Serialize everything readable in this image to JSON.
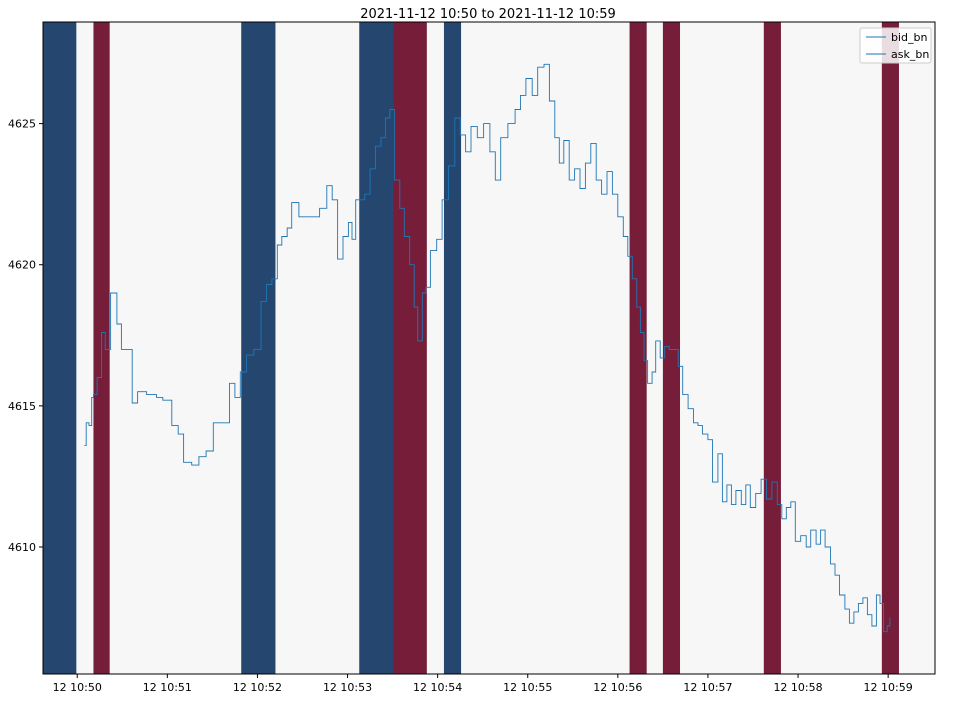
{
  "chart_data": {
    "type": "line",
    "title": "2021-11-12 10:50 to 2021-11-12 10:59",
    "xlabel": "",
    "ylabel": "",
    "x_ticks": [
      {
        "t": 50,
        "label": "12 10:50"
      },
      {
        "t": 51,
        "label": "12 10:51"
      },
      {
        "t": 52,
        "label": "12 10:52"
      },
      {
        "t": 53,
        "label": "12 10:53"
      },
      {
        "t": 54,
        "label": "12 10:54"
      },
      {
        "t": 55,
        "label": "12 10:55"
      },
      {
        "t": 56,
        "label": "12 10:56"
      },
      {
        "t": 57,
        "label": "12 10:57"
      },
      {
        "t": 58,
        "label": "12 10:58"
      },
      {
        "t": 59,
        "label": "12 10:59"
      }
    ],
    "y_ticks": [
      4610,
      4615,
      4620,
      4625
    ],
    "xlim": [
      49.62,
      59.52
    ],
    "ylim": [
      4605.5,
      4628.6
    ],
    "grid": false,
    "legend_position": "top-right",
    "background_color": "#f7f7f7",
    "line_color": "#1f77b4",
    "band_colors": {
      "buy": "#24466f",
      "sell": "#751d39"
    },
    "bands": [
      {
        "start": 49.62,
        "end": 49.99,
        "kind": "buy"
      },
      {
        "start": 50.18,
        "end": 50.36,
        "kind": "sell"
      },
      {
        "start": 51.82,
        "end": 52.2,
        "kind": "buy"
      },
      {
        "start": 53.13,
        "end": 53.51,
        "kind": "buy"
      },
      {
        "start": 53.51,
        "end": 53.88,
        "kind": "sell"
      },
      {
        "start": 54.07,
        "end": 54.26,
        "kind": "buy"
      },
      {
        "start": 56.13,
        "end": 56.32,
        "kind": "sell"
      },
      {
        "start": 56.5,
        "end": 56.69,
        "kind": "sell"
      },
      {
        "start": 57.62,
        "end": 57.81,
        "kind": "sell"
      },
      {
        "start": 58.93,
        "end": 59.12,
        "kind": "sell"
      }
    ],
    "series": [
      {
        "name": "bid_bn",
        "points": [
          [
            50.08,
            4613.6
          ],
          [
            50.1,
            4614.4
          ],
          [
            50.13,
            4614.3
          ],
          [
            50.16,
            4615.3
          ],
          [
            50.18,
            4615.4
          ],
          [
            50.22,
            4616.0
          ],
          [
            50.27,
            4617.6
          ],
          [
            50.31,
            4617.0
          ],
          [
            50.37,
            4619.0
          ],
          [
            50.44,
            4617.9
          ],
          [
            50.49,
            4617.0
          ],
          [
            50.56,
            4617.0
          ],
          [
            50.61,
            4615.1
          ],
          [
            50.67,
            4615.5
          ],
          [
            50.77,
            4615.4
          ],
          [
            50.88,
            4615.3
          ],
          [
            50.95,
            4615.2
          ],
          [
            51.05,
            4614.3
          ],
          [
            51.12,
            4614.0
          ],
          [
            51.18,
            4613.0
          ],
          [
            51.27,
            4612.9
          ],
          [
            51.35,
            4613.2
          ],
          [
            51.43,
            4613.4
          ],
          [
            51.51,
            4614.4
          ],
          [
            51.57,
            4614.4
          ],
          [
            51.63,
            4614.4
          ],
          [
            51.69,
            4615.8
          ],
          [
            51.75,
            4615.3
          ],
          [
            51.81,
            4616.2
          ],
          [
            51.88,
            4616.8
          ],
          [
            51.96,
            4617.0
          ],
          [
            52.04,
            4618.7
          ],
          [
            52.1,
            4619.3
          ],
          [
            52.16,
            4619.5
          ],
          [
            52.22,
            4620.7
          ],
          [
            52.27,
            4621.0
          ],
          [
            52.33,
            4621.3
          ],
          [
            52.38,
            4622.2
          ],
          [
            52.46,
            4621.7
          ],
          [
            52.55,
            4621.7
          ],
          [
            52.62,
            4621.7
          ],
          [
            52.69,
            4622.0
          ],
          [
            52.77,
            4622.8
          ],
          [
            52.83,
            4622.3
          ],
          [
            52.89,
            4620.2
          ],
          [
            52.95,
            4621.0
          ],
          [
            53.01,
            4621.5
          ],
          [
            53.05,
            4620.9
          ],
          [
            53.09,
            4622.3
          ],
          [
            53.14,
            4622.3
          ],
          [
            53.19,
            4622.5
          ],
          [
            53.25,
            4623.4
          ],
          [
            53.31,
            4624.2
          ],
          [
            53.37,
            4624.5
          ],
          [
            53.42,
            4625.2
          ],
          [
            53.47,
            4625.5
          ],
          [
            53.52,
            4623.0
          ],
          [
            53.58,
            4622.0
          ],
          [
            53.63,
            4621.0
          ],
          [
            53.69,
            4620.0
          ],
          [
            53.74,
            4618.5
          ],
          [
            53.78,
            4617.3
          ],
          [
            53.83,
            4619.0
          ],
          [
            53.87,
            4619.2
          ],
          [
            53.92,
            4620.5
          ],
          [
            53.99,
            4620.9
          ],
          [
            54.05,
            4622.3
          ],
          [
            54.12,
            4623.5
          ],
          [
            54.19,
            4625.2
          ],
          [
            54.25,
            4624.6
          ],
          [
            54.31,
            4624.0
          ],
          [
            54.37,
            4624.9
          ],
          [
            54.44,
            4624.5
          ],
          [
            54.51,
            4625.0
          ],
          [
            54.58,
            4624.0
          ],
          [
            54.64,
            4623.0
          ],
          [
            54.7,
            4624.5
          ],
          [
            54.78,
            4625.0
          ],
          [
            54.86,
            4625.5
          ],
          [
            54.92,
            4626.0
          ],
          [
            54.98,
            4626.6
          ],
          [
            55.05,
            4626.0
          ],
          [
            55.11,
            4627.0
          ],
          [
            55.18,
            4627.1
          ],
          [
            55.24,
            4625.8
          ],
          [
            55.3,
            4624.5
          ],
          [
            55.35,
            4623.6
          ],
          [
            55.4,
            4624.4
          ],
          [
            55.46,
            4623.0
          ],
          [
            55.52,
            4623.4
          ],
          [
            55.58,
            4622.7
          ],
          [
            55.64,
            4623.6
          ],
          [
            55.7,
            4624.3
          ],
          [
            55.76,
            4623.0
          ],
          [
            55.82,
            4622.5
          ],
          [
            55.88,
            4623.3
          ],
          [
            55.94,
            4622.5
          ],
          [
            56.0,
            4621.7
          ],
          [
            56.06,
            4621.0
          ],
          [
            56.11,
            4620.3
          ],
          [
            56.16,
            4619.5
          ],
          [
            56.21,
            4618.5
          ],
          [
            56.25,
            4617.6
          ],
          [
            56.29,
            4616.6
          ],
          [
            56.33,
            4615.8
          ],
          [
            56.38,
            4616.2
          ],
          [
            56.42,
            4617.3
          ],
          [
            56.47,
            4616.7
          ],
          [
            56.52,
            4617.1
          ],
          [
            56.57,
            4617.0
          ],
          [
            56.62,
            4617.0
          ],
          [
            56.67,
            4616.4
          ],
          [
            56.72,
            4615.4
          ],
          [
            56.78,
            4614.9
          ],
          [
            56.84,
            4614.4
          ],
          [
            56.89,
            4614.3
          ],
          [
            56.94,
            4614.0
          ],
          [
            57.0,
            4613.8
          ],
          [
            57.05,
            4612.3
          ],
          [
            57.11,
            4613.3
          ],
          [
            57.16,
            4611.6
          ],
          [
            57.21,
            4612.2
          ],
          [
            57.26,
            4611.5
          ],
          [
            57.31,
            4612.0
          ],
          [
            57.37,
            4611.5
          ],
          [
            57.42,
            4612.2
          ],
          [
            57.47,
            4611.4
          ],
          [
            57.53,
            4611.9
          ],
          [
            57.59,
            4612.4
          ],
          [
            57.65,
            4611.7
          ],
          [
            57.71,
            4612.3
          ],
          [
            57.77,
            4611.5
          ],
          [
            57.82,
            4611.0
          ],
          [
            57.87,
            4611.4
          ],
          [
            57.92,
            4611.6
          ],
          [
            57.97,
            4610.2
          ],
          [
            58.03,
            4610.4
          ],
          [
            58.09,
            4610.0
          ],
          [
            58.14,
            4610.6
          ],
          [
            58.2,
            4610.1
          ],
          [
            58.25,
            4610.6
          ],
          [
            58.3,
            4610.0
          ],
          [
            58.36,
            4609.4
          ],
          [
            58.41,
            4609.0
          ],
          [
            58.46,
            4608.3
          ],
          [
            58.52,
            4607.8
          ],
          [
            58.57,
            4607.3
          ],
          [
            58.62,
            4607.7
          ],
          [
            58.67,
            4608.0
          ],
          [
            58.72,
            4608.2
          ],
          [
            58.77,
            4607.6
          ],
          [
            58.82,
            4607.2
          ],
          [
            58.87,
            4608.3
          ],
          [
            58.91,
            4608.0
          ],
          [
            58.95,
            4607.0
          ],
          [
            58.99,
            4607.2
          ],
          [
            59.02,
            4607.5
          ]
        ]
      },
      {
        "name": "ask_bn",
        "points": []
      }
    ]
  }
}
